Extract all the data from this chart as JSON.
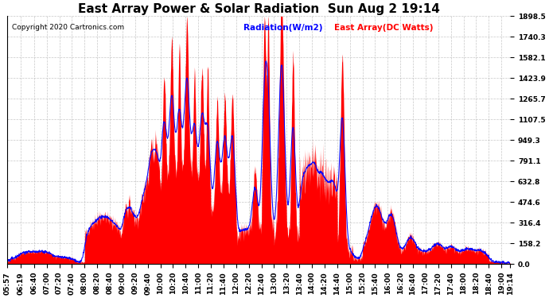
{
  "title": "East Array Power & Solar Radiation  Sun Aug 2 19:14",
  "copyright": "Copyright 2020 Cartronics.com",
  "legend_radiation": "Radiation(W/m2)",
  "legend_east_array": "East Array(DC Watts)",
  "legend_radiation_color": "blue",
  "legend_east_array_color": "red",
  "ymax": 1898.5,
  "ymin": 0.0,
  "yticks": [
    0.0,
    158.2,
    316.4,
    474.6,
    632.8,
    791.1,
    949.3,
    1107.5,
    1265.7,
    1423.9,
    1582.1,
    1740.3,
    1898.5
  ],
  "background_color": "#ffffff",
  "plot_background": "#ffffff",
  "grid_color": "#b0b0b0",
  "fill_color": "red",
  "line_color": "blue",
  "title_fontsize": 11,
  "tick_fontsize": 6.5,
  "xtick_labels": [
    "05:57",
    "06:19",
    "06:40",
    "07:00",
    "07:20",
    "07:40",
    "08:00",
    "08:20",
    "08:40",
    "09:00",
    "09:20",
    "09:40",
    "10:00",
    "10:20",
    "10:40",
    "11:00",
    "11:20",
    "11:40",
    "12:00",
    "12:20",
    "12:40",
    "13:00",
    "13:20",
    "13:40",
    "14:00",
    "14:20",
    "14:40",
    "15:00",
    "15:20",
    "15:40",
    "16:00",
    "16:20",
    "16:40",
    "17:00",
    "17:20",
    "17:40",
    "18:00",
    "18:20",
    "18:40",
    "19:00",
    "19:14"
  ]
}
